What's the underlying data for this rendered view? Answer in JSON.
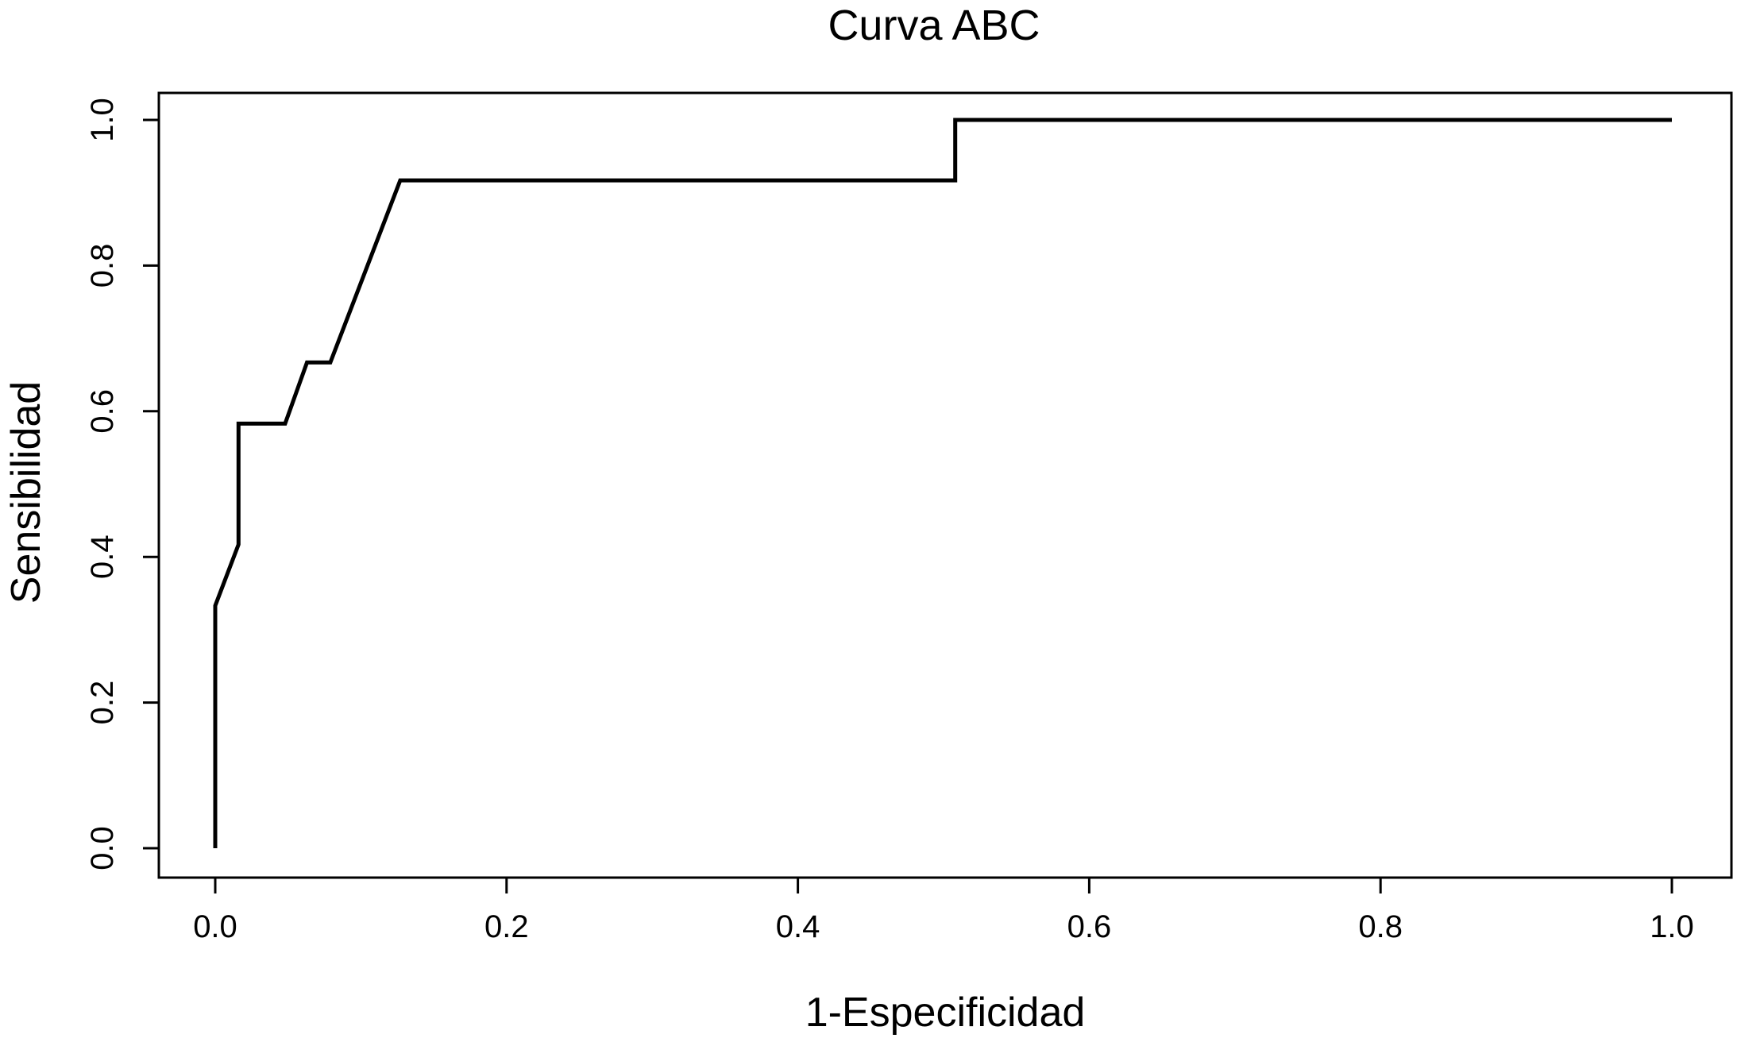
{
  "chart_data": {
    "type": "line",
    "title": "Curva ABC",
    "xlabel": "1-Especificidad",
    "ylabel": "Sensibilidad",
    "xlim": [
      0.0,
      1.0
    ],
    "ylim": [
      0.0,
      1.0
    ],
    "x_ticks": [
      0.0,
      0.2,
      0.4,
      0.6,
      0.8,
      1.0
    ],
    "y_ticks": [
      0.0,
      0.2,
      0.4,
      0.6,
      0.8,
      1.0
    ],
    "x_tick_labels": [
      "0.0",
      "0.2",
      "0.4",
      "0.6",
      "0.8",
      "1.0"
    ],
    "y_tick_labels": [
      "0.0",
      "0.2",
      "0.4",
      "0.6",
      "0.8",
      "1.0"
    ],
    "grid": false,
    "line_color": "#000000",
    "series": [
      {
        "x": [
          0.0,
          0.0,
          0.016,
          0.016,
          0.048,
          0.063,
          0.079,
          0.127,
          0.508,
          0.508,
          1.0
        ],
        "y": [
          0.0,
          0.333,
          0.417,
          0.583,
          0.583,
          0.667,
          0.667,
          0.917,
          0.917,
          1.0,
          1.0
        ]
      }
    ]
  }
}
